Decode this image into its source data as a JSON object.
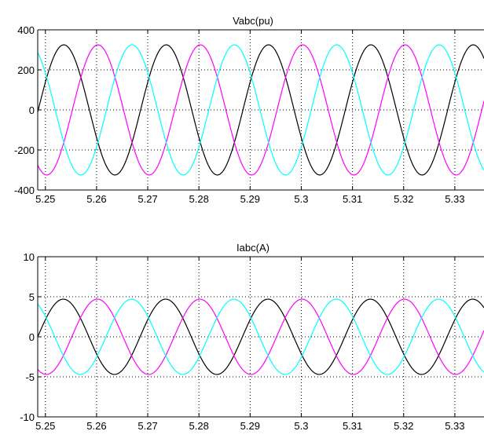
{
  "chart_data": [
    {
      "type": "line",
      "title": "Vabc(pu)",
      "xlabel": "",
      "ylabel": "",
      "xlim": [
        5.2485,
        5.3357
      ],
      "ylim": [
        -400,
        400
      ],
      "xticks": [
        5.25,
        5.26,
        5.27,
        5.28,
        5.29,
        5.3,
        5.31,
        5.32,
        5.33
      ],
      "xtick_labels": [
        "5.25",
        "5.26",
        "5.27",
        "5.28",
        "5.29",
        "5.3",
        "5.31",
        "5.32",
        "5.33"
      ],
      "yticks": [
        -400,
        -200,
        0,
        200,
        400
      ],
      "ytick_labels": [
        "-400",
        "-200",
        "0",
        "200",
        "400"
      ],
      "grid": true,
      "waveform": {
        "amplitude": 325,
        "frequency_hz": 50,
        "reference_x": 5.2536
      },
      "series": [
        {
          "color": "#000000",
          "phase_shift_deg": 0
        },
        {
          "color": "#ff00ff",
          "phase_shift_deg": -120
        },
        {
          "color": "#00ffff",
          "phase_shift_deg": 120
        }
      ]
    },
    {
      "type": "line",
      "title": "Iabc(A)",
      "xlabel": "",
      "ylabel": "",
      "xlim": [
        5.2485,
        5.3357
      ],
      "ylim": [
        -10,
        10
      ],
      "xticks": [
        5.25,
        5.26,
        5.27,
        5.28,
        5.29,
        5.3,
        5.31,
        5.32,
        5.33
      ],
      "xtick_labels": [
        "5.25",
        "5.26",
        "5.27",
        "5.28",
        "5.29",
        "5.3",
        "5.31",
        "5.32",
        "5.33"
      ],
      "yticks": [
        -10,
        -5,
        0,
        5,
        10
      ],
      "ytick_labels": [
        "-10",
        "-5",
        "0",
        "5",
        "10"
      ],
      "grid": true,
      "waveform": {
        "amplitude": 4.7,
        "frequency_hz": 50,
        "reference_x": 5.2535
      },
      "series": [
        {
          "color": "#000000",
          "phase_shift_deg": 0
        },
        {
          "color": "#ff00ff",
          "phase_shift_deg": -120
        },
        {
          "color": "#00ffff",
          "phase_shift_deg": 120
        }
      ]
    }
  ]
}
